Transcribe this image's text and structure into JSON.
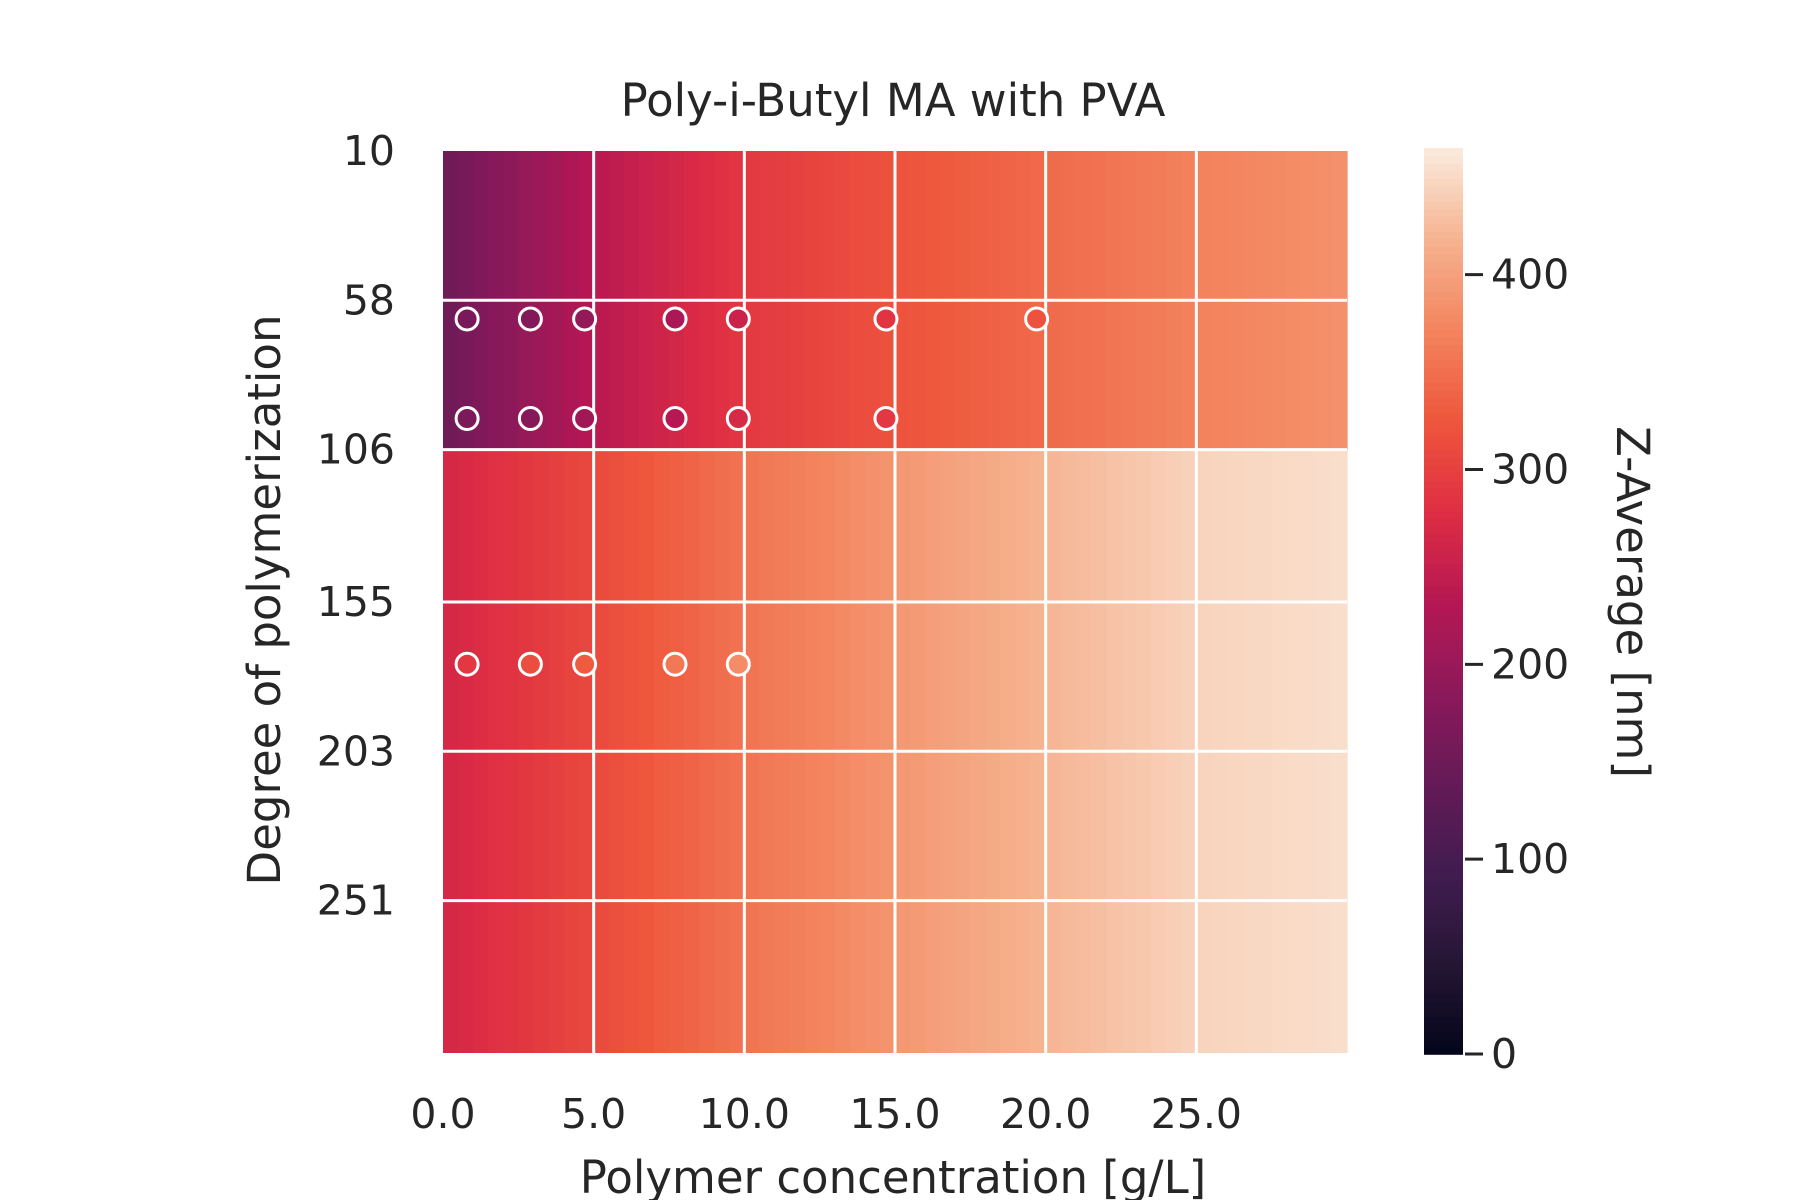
{
  "chart_data": {
    "type": "heatmap",
    "title": "Poly-i-Butyl MA with PVA",
    "xlabel": "Polymer concentration [g/L]",
    "ylabel": "Degree of polymerization",
    "colorbar_label": "Z-Average [nm]",
    "colormap": "rocket",
    "xlim": [
      0,
      30
    ],
    "ylim": [
      10,
      300
    ],
    "y_inverted": true,
    "grid": true,
    "x_ticks": [
      0,
      5,
      10,
      15,
      20,
      25
    ],
    "x_tick_labels": [
      "0.0",
      "5.0",
      "10.0",
      "15.0",
      "20.0",
      "25.0"
    ],
    "y_ticks": [
      10,
      58,
      106,
      155,
      203,
      251
    ],
    "y_tick_labels": [
      "10",
      "58",
      "106",
      "155",
      "203",
      "251"
    ],
    "colorbar_range": [
      0,
      465
    ],
    "colorbar_ticks": [
      0,
      100,
      200,
      300,
      400
    ],
    "colorbar_tick_labels": [
      "0",
      "100",
      "200",
      "300",
      "400"
    ],
    "bands": [
      {
        "dp_range": [
          10,
          106
        ],
        "x": [
          0,
          5,
          10,
          15,
          20,
          25,
          30
        ],
        "z": [
          150,
          235,
          290,
          320,
          345,
          370,
          385
        ]
      },
      {
        "dp_range": [
          106,
          300
        ],
        "x": [
          0,
          5,
          10,
          15,
          20,
          25,
          30
        ],
        "z": [
          265,
          310,
          355,
          390,
          420,
          445,
          455
        ]
      }
    ],
    "samples": [
      {
        "x": 0.8,
        "dp": 64,
        "z": 165
      },
      {
        "x": 2.9,
        "dp": 64,
        "z": 175
      },
      {
        "x": 4.7,
        "dp": 64,
        "z": 195
      },
      {
        "x": 7.7,
        "dp": 64,
        "z": 220
      },
      {
        "x": 9.8,
        "dp": 64,
        "z": 255
      },
      {
        "x": 14.7,
        "dp": 64,
        "z": 285
      },
      {
        "x": 19.7,
        "dp": 64,
        "z": 320
      },
      {
        "x": 0.8,
        "dp": 96,
        "z": 170
      },
      {
        "x": 2.9,
        "dp": 96,
        "z": 180
      },
      {
        "x": 4.7,
        "dp": 96,
        "z": 210
      },
      {
        "x": 7.7,
        "dp": 96,
        "z": 235
      },
      {
        "x": 9.8,
        "dp": 96,
        "z": 270
      },
      {
        "x": 14.7,
        "dp": 96,
        "z": 290
      },
      {
        "x": 0.8,
        "dp": 175,
        "z": 290
      },
      {
        "x": 2.9,
        "dp": 175,
        "z": 315
      },
      {
        "x": 4.7,
        "dp": 175,
        "z": 330
      },
      {
        "x": 7.7,
        "dp": 175,
        "z": 360
      },
      {
        "x": 9.8,
        "dp": 175,
        "z": 380
      }
    ]
  }
}
